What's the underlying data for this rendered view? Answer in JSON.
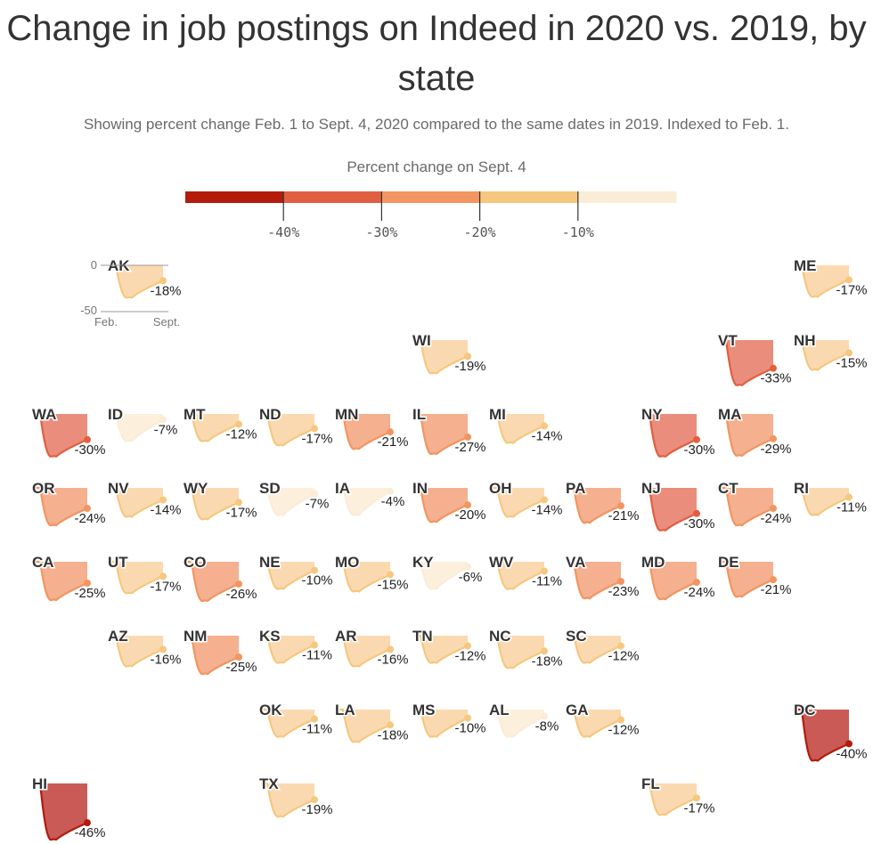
{
  "title": "Change in job postings on Indeed in 2020 vs. 2019, by state",
  "subtitle": "Showing percent change Feb. 1 to Sept. 4, 2020 compared to the same dates in 2019. Indexed to Feb. 1.",
  "legend": {
    "title": "Percent change on Sept. 4",
    "colors": [
      "#b31b0b",
      "#e15f40",
      "#f29560",
      "#f6c77e",
      "#fbecd8"
    ],
    "ticks": [
      "-40%",
      "-30%",
      "-20%",
      "-10%"
    ]
  },
  "axis_key": {
    "y_top": "0",
    "y_bottom": "-50",
    "x_start": "Feb.",
    "x_end": "Sept."
  },
  "chart_data": {
    "type": "area",
    "x_range": [
      "Feb. 1",
      "Sept. 4"
    ],
    "ylim": [
      -50,
      0
    ],
    "value_unit": "percent change on Sept. 4",
    "states": [
      {
        "code": "AK",
        "value": -18,
        "col": 1,
        "row": 0
      },
      {
        "code": "ME",
        "value": -17,
        "col": 10,
        "row": 0
      },
      {
        "code": "WI",
        "value": -19,
        "col": 5,
        "row": 1
      },
      {
        "code": "VT",
        "value": -33,
        "col": 9,
        "row": 1
      },
      {
        "code": "NH",
        "value": -15,
        "col": 10,
        "row": 1
      },
      {
        "code": "WA",
        "value": -30,
        "col": 0,
        "row": 2
      },
      {
        "code": "ID",
        "value": -7,
        "col": 1,
        "row": 2
      },
      {
        "code": "MT",
        "value": -12,
        "col": 2,
        "row": 2
      },
      {
        "code": "ND",
        "value": -17,
        "col": 3,
        "row": 2
      },
      {
        "code": "MN",
        "value": -21,
        "col": 4,
        "row": 2
      },
      {
        "code": "IL",
        "value": -27,
        "col": 5,
        "row": 2
      },
      {
        "code": "MI",
        "value": -14,
        "col": 6,
        "row": 2
      },
      {
        "code": "NY",
        "value": -30,
        "col": 8,
        "row": 2
      },
      {
        "code": "MA",
        "value": -29,
        "col": 9,
        "row": 2
      },
      {
        "code": "OR",
        "value": -24,
        "col": 0,
        "row": 3
      },
      {
        "code": "NV",
        "value": -14,
        "col": 1,
        "row": 3
      },
      {
        "code": "WY",
        "value": -17,
        "col": 2,
        "row": 3
      },
      {
        "code": "SD",
        "value": -7,
        "col": 3,
        "row": 3
      },
      {
        "code": "IA",
        "value": -4,
        "col": 4,
        "row": 3
      },
      {
        "code": "IN",
        "value": -20,
        "col": 5,
        "row": 3
      },
      {
        "code": "OH",
        "value": -14,
        "col": 6,
        "row": 3
      },
      {
        "code": "PA",
        "value": -21,
        "col": 7,
        "row": 3
      },
      {
        "code": "NJ",
        "value": -30,
        "col": 8,
        "row": 3
      },
      {
        "code": "CT",
        "value": -24,
        "col": 9,
        "row": 3
      },
      {
        "code": "RI",
        "value": -11,
        "col": 10,
        "row": 3
      },
      {
        "code": "CA",
        "value": -25,
        "col": 0,
        "row": 4
      },
      {
        "code": "UT",
        "value": -17,
        "col": 1,
        "row": 4
      },
      {
        "code": "CO",
        "value": -26,
        "col": 2,
        "row": 4
      },
      {
        "code": "NE",
        "value": -10,
        "col": 3,
        "row": 4
      },
      {
        "code": "MO",
        "value": -15,
        "col": 4,
        "row": 4
      },
      {
        "code": "KY",
        "value": -6,
        "col": 5,
        "row": 4
      },
      {
        "code": "WV",
        "value": -11,
        "col": 6,
        "row": 4
      },
      {
        "code": "VA",
        "value": -23,
        "col": 7,
        "row": 4
      },
      {
        "code": "MD",
        "value": -24,
        "col": 8,
        "row": 4
      },
      {
        "code": "DE",
        "value": -21,
        "col": 9,
        "row": 4
      },
      {
        "code": "AZ",
        "value": -16,
        "col": 1,
        "row": 5
      },
      {
        "code": "NM",
        "value": -25,
        "col": 2,
        "row": 5
      },
      {
        "code": "KS",
        "value": -11,
        "col": 3,
        "row": 5
      },
      {
        "code": "AR",
        "value": -16,
        "col": 4,
        "row": 5
      },
      {
        "code": "TN",
        "value": -12,
        "col": 5,
        "row": 5
      },
      {
        "code": "NC",
        "value": -18,
        "col": 6,
        "row": 5
      },
      {
        "code": "SC",
        "value": -12,
        "col": 7,
        "row": 5
      },
      {
        "code": "OK",
        "value": -11,
        "col": 3,
        "row": 6
      },
      {
        "code": "LA",
        "value": -18,
        "col": 4,
        "row": 6
      },
      {
        "code": "MS",
        "value": -10,
        "col": 5,
        "row": 6
      },
      {
        "code": "AL",
        "value": -8,
        "col": 6,
        "row": 6
      },
      {
        "code": "GA",
        "value": -12,
        "col": 7,
        "row": 6
      },
      {
        "code": "DC",
        "value": -40,
        "col": 10,
        "row": 6
      },
      {
        "code": "HI",
        "value": -46,
        "col": 0,
        "row": 7
      },
      {
        "code": "TX",
        "value": -19,
        "col": 3,
        "row": 7
      },
      {
        "code": "FL",
        "value": -17,
        "col": 8,
        "row": 7
      }
    ]
  }
}
